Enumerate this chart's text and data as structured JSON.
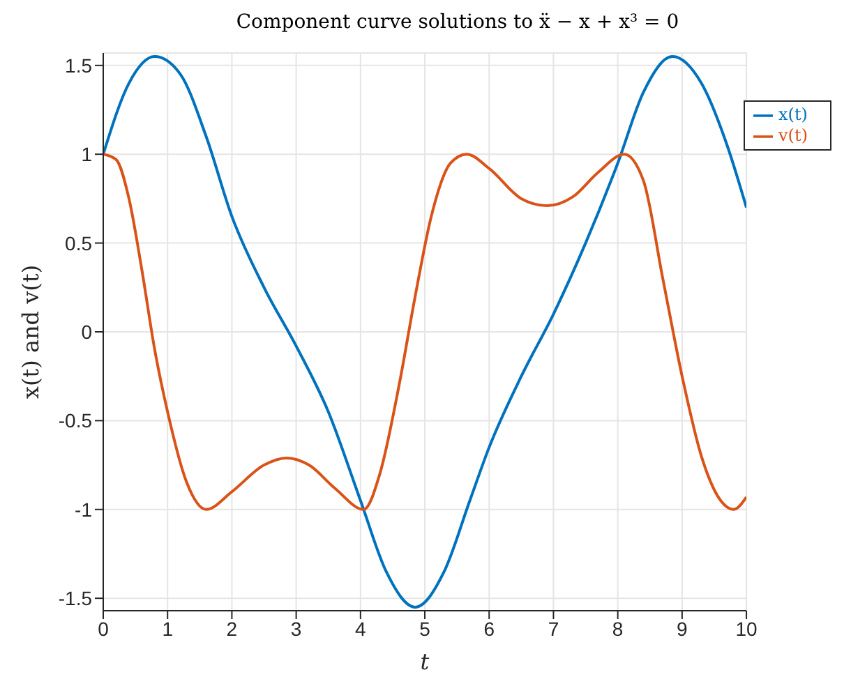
{
  "chart_data": {
    "type": "line",
    "title": "Component curve solutions to ẍ − x + x³ = 0",
    "xlabel": "t",
    "ylabel": "x(t) and v(t)",
    "xlim": [
      0,
      10
    ],
    "xticks": [
      0,
      1,
      2,
      3,
      4,
      5,
      6,
      7,
      8,
      9,
      10
    ],
    "ylim": [
      -1.57,
      1.57
    ],
    "yticks": [
      -1.5,
      -1,
      -0.5,
      0,
      0.5,
      1,
      1.5
    ],
    "grid": true,
    "legend": "top right",
    "marker": "none",
    "line_style": "solid",
    "series": [
      {
        "name": "x(t)",
        "color": "#0072bd",
        "x": [
          0,
          0.4,
          0.8,
          1.2,
          1.6,
          2.0,
          2.5,
          3.0,
          3.5,
          4.0,
          4.4,
          4.85,
          5.3,
          5.7,
          6.0,
          6.5,
          7.0,
          7.5,
          8.0,
          8.4,
          8.85,
          9.3,
          9.7,
          10
        ],
        "values": [
          1.0,
          1.4,
          1.55,
          1.45,
          1.1,
          0.65,
          0.25,
          -0.08,
          -0.45,
          -0.95,
          -1.35,
          -1.55,
          -1.35,
          -0.95,
          -0.65,
          -0.25,
          0.1,
          0.5,
          0.95,
          1.35,
          1.55,
          1.4,
          1.05,
          0.7
        ]
      },
      {
        "name": "v(t)",
        "color": "#d95319",
        "x": [
          0,
          0.2,
          0.4,
          0.6,
          0.8,
          1.0,
          1.3,
          1.6,
          2.0,
          2.5,
          2.85,
          3.2,
          3.6,
          4.05,
          4.3,
          4.6,
          4.85,
          5.1,
          5.4,
          5.65,
          6.0,
          6.5,
          6.9,
          7.3,
          7.7,
          8.1,
          8.4,
          8.7,
          9.0,
          9.3,
          9.6,
          9.8,
          10
        ],
        "values": [
          1.0,
          0.97,
          0.75,
          0.35,
          -0.1,
          -0.45,
          -0.85,
          -1.0,
          -0.9,
          -0.75,
          -0.71,
          -0.75,
          -0.88,
          -1.0,
          -0.8,
          -0.3,
          0.2,
          0.65,
          0.95,
          1.0,
          0.92,
          0.75,
          0.71,
          0.76,
          0.9,
          1.0,
          0.85,
          0.3,
          -0.25,
          -0.7,
          -0.95,
          -1.0,
          -0.93
        ]
      }
    ]
  }
}
